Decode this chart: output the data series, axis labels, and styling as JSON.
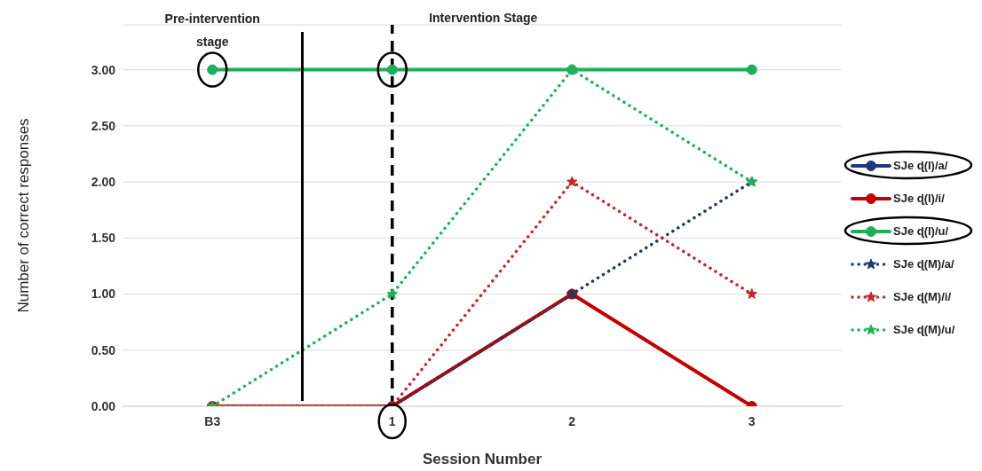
{
  "chart_data": {
    "type": "line",
    "xlabel": "Session Number",
    "ylabel": "Number of correct responses",
    "categories": [
      "B3",
      "1",
      "2",
      "3"
    ],
    "ylim": [
      0,
      3.4
    ],
    "yticks": [
      {
        "value": 0,
        "label": "0.00"
      },
      {
        "value": 0.5,
        "label": "0.50"
      },
      {
        "value": 1,
        "label": "1.00"
      },
      {
        "value": 1.5,
        "label": "1.50"
      },
      {
        "value": 2,
        "label": "2.00"
      },
      {
        "value": 2.5,
        "label": "2.50"
      },
      {
        "value": 3,
        "label": "3.00"
      }
    ],
    "grid": "y",
    "legend": "right",
    "marker": "circle",
    "line_style": "solid",
    "series": [
      {
        "name": "SJe ɖ(I)/a/",
        "color": "#1f3a7a",
        "values": [
          null,
          null,
          null,
          null
        ]
      },
      {
        "name": "SJe ɖ(I)/i/",
        "color": "#c00000",
        "values": [
          0,
          0,
          1,
          0
        ]
      },
      {
        "name": "SJe ɖ(I)/u/",
        "color": "#1fae5a",
        "values": [
          3,
          3,
          3,
          3
        ]
      },
      {
        "name": "SJe ɖ(M)/a/",
        "color": "#203864",
        "marker": "star",
        "line_style": "dotted",
        "values": [
          0,
          0,
          1,
          2
        ]
      },
      {
        "name": "SJe ɖ(M)/i/",
        "color": "#c0282d",
        "marker": "star",
        "line_style": "dotted",
        "values": [
          0,
          0,
          2,
          1
        ]
      },
      {
        "name": "SJe ɖ(M)/u/",
        "color": "#22b05e",
        "marker": "star",
        "line_style": "dotted",
        "values": [
          0,
          1,
          3,
          2
        ]
      }
    ],
    "ref_lines": [
      {
        "axis": "x",
        "value": "1",
        "label": null,
        "color": "#000000",
        "line_style": "dashed"
      }
    ],
    "annotations": [
      "Pre-intervention stage",
      "Intervention Stage"
    ]
  }
}
